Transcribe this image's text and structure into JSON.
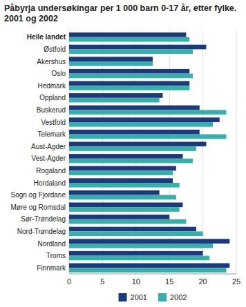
{
  "chart_data": {
    "type": "bar",
    "orientation": "horizontal",
    "title": "Påbyrja undersøkingar per 1 000 barn 0-17 år, etter fylke. 2001 og 2002",
    "categories": [
      "Heile landet",
      "Østfold",
      "Akershus",
      "Oslo",
      "Hedmark",
      "Oppland",
      "Buskerud",
      "Vestfold",
      "Telemark",
      "Aust-Agder",
      "Vest-Agder",
      "Rogaland",
      "Hordaland",
      "Sogn og Fjordane",
      "Møre og Romsdal",
      "Sør-Trøndelag",
      "Nord-Trøndelag",
      "Nordland",
      "Troms",
      "Finnmark"
    ],
    "series": [
      {
        "name": "2001",
        "color": "#1a3a7c",
        "values": [
          17.5,
          20.5,
          12.5,
          18.0,
          18.0,
          14.0,
          19.5,
          22.5,
          19.5,
          20.5,
          17.0,
          16.0,
          15.5,
          13.5,
          17.0,
          15.0,
          19.0,
          24.0,
          20.0,
          24.0
        ]
      },
      {
        "name": "2002",
        "color": "#3aafa9",
        "values": [
          18.0,
          18.5,
          12.5,
          18.5,
          18.0,
          13.5,
          23.5,
          21.5,
          23.5,
          19.0,
          18.5,
          15.5,
          16.5,
          16.0,
          16.5,
          17.5,
          20.0,
          21.5,
          21.0,
          23.5
        ]
      }
    ],
    "xlim": [
      0,
      25
    ],
    "xticks": [
      0,
      5,
      10,
      15,
      20,
      25
    ],
    "grid": true,
    "legend": "bottom"
  }
}
